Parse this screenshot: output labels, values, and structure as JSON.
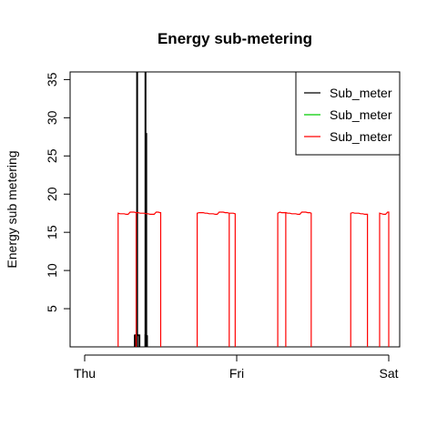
{
  "chart_data": {
    "type": "line",
    "title": "Energy sub-metering",
    "xlabel": "",
    "ylabel": "Energy sub metering",
    "x_ticks": [
      "Thu",
      "Fri",
      "Sat"
    ],
    "x_domain_days": [
      "Thu",
      "Sat"
    ],
    "ylim": [
      0,
      36
    ],
    "y_ticks": [
      5,
      10,
      15,
      20,
      25,
      30,
      35
    ],
    "legend": {
      "placement": "top-right",
      "entries": [
        "Sub_meter",
        "Sub_meter",
        "Sub_meter"
      ]
    },
    "series": [
      {
        "name": "Sub_meter",
        "color": "#000000",
        "segments": [
          {
            "start": 0.33,
            "end": 0.36,
            "value": 1.5,
            "spikes": [
              0.345,
              0.4
            ],
            "spike_value": 37
          },
          {
            "start": 0.4,
            "end": 0.41,
            "value": 1.5,
            "spikes": [
              0.405
            ],
            "spike_value": 28
          }
        ]
      },
      {
        "name": "Sub_meter",
        "color": "#00cc00",
        "segments": []
      },
      {
        "name": "Sub_meter",
        "color": "#ff0000",
        "segments": [
          {
            "start": 0.22,
            "end": 0.5,
            "value": 17.5
          },
          {
            "start": 0.74,
            "end": 0.99,
            "value": 17.5
          },
          {
            "start": 1.27,
            "end": 1.49,
            "value": 17.5
          },
          {
            "start": 1.75,
            "end": 1.86,
            "value": 17.5
          },
          {
            "start": 1.94,
            "end": 2.0,
            "value": 17.5
          }
        ]
      }
    ]
  }
}
